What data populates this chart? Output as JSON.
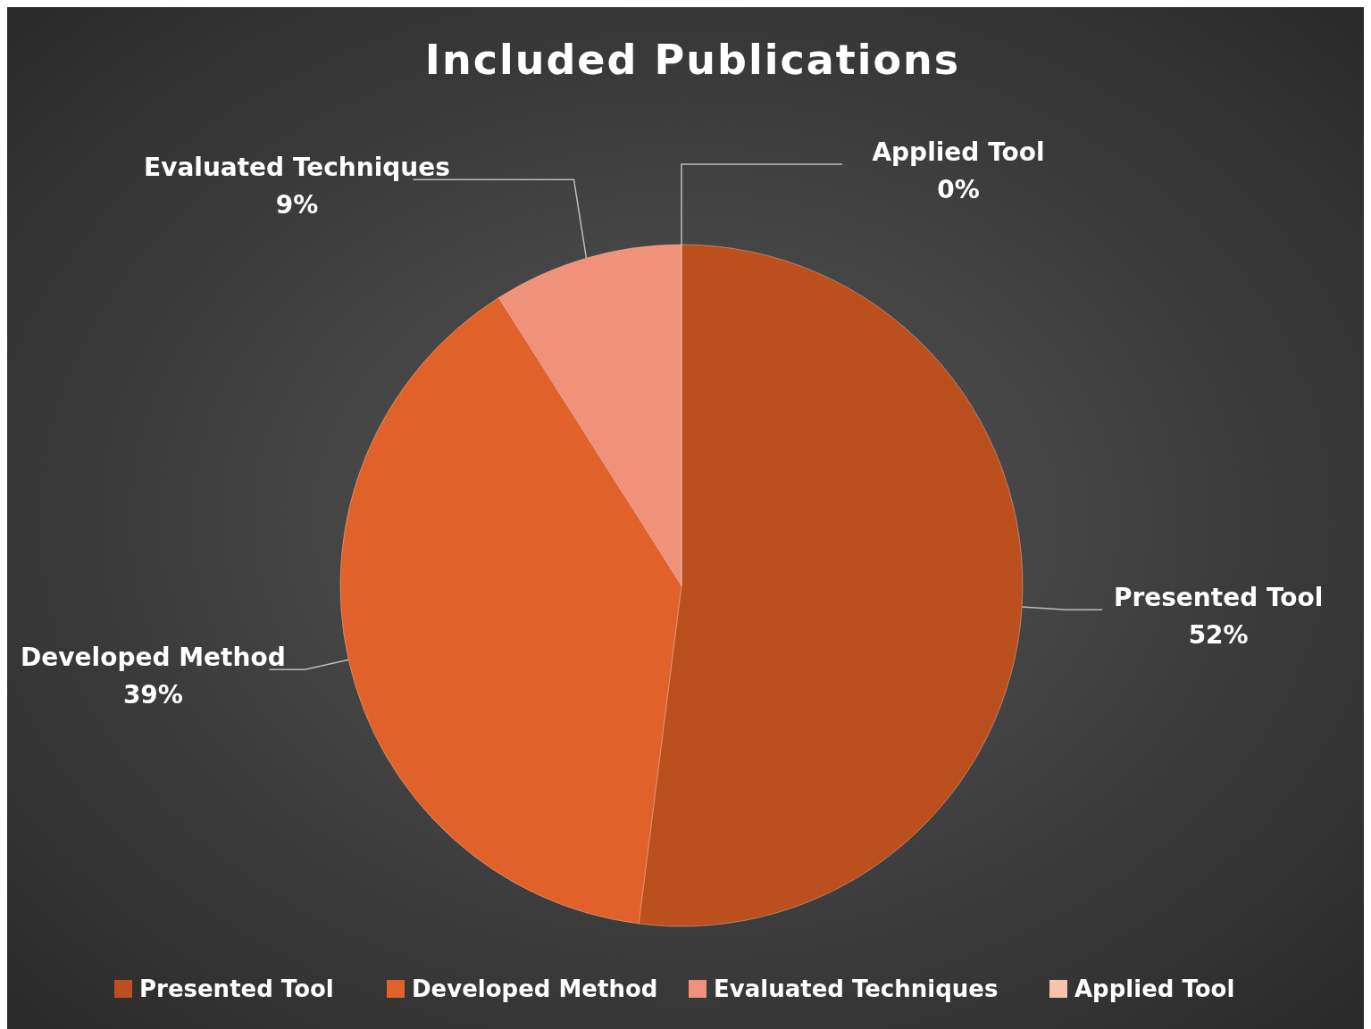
{
  "chart_data": {
    "type": "pie",
    "title": "Included Publications",
    "categories": [
      "Presented Tool",
      "Developed Method",
      "Evaluated Techniques",
      "Applied Tool"
    ],
    "values": [
      52,
      39,
      9,
      0
    ],
    "colors": [
      "#bb4f1d",
      "#e0622a",
      "#f0927a",
      "#f6c3ad"
    ],
    "value_labels": [
      "52%",
      "39%",
      "9%",
      "0%"
    ],
    "legend": "bottom"
  }
}
